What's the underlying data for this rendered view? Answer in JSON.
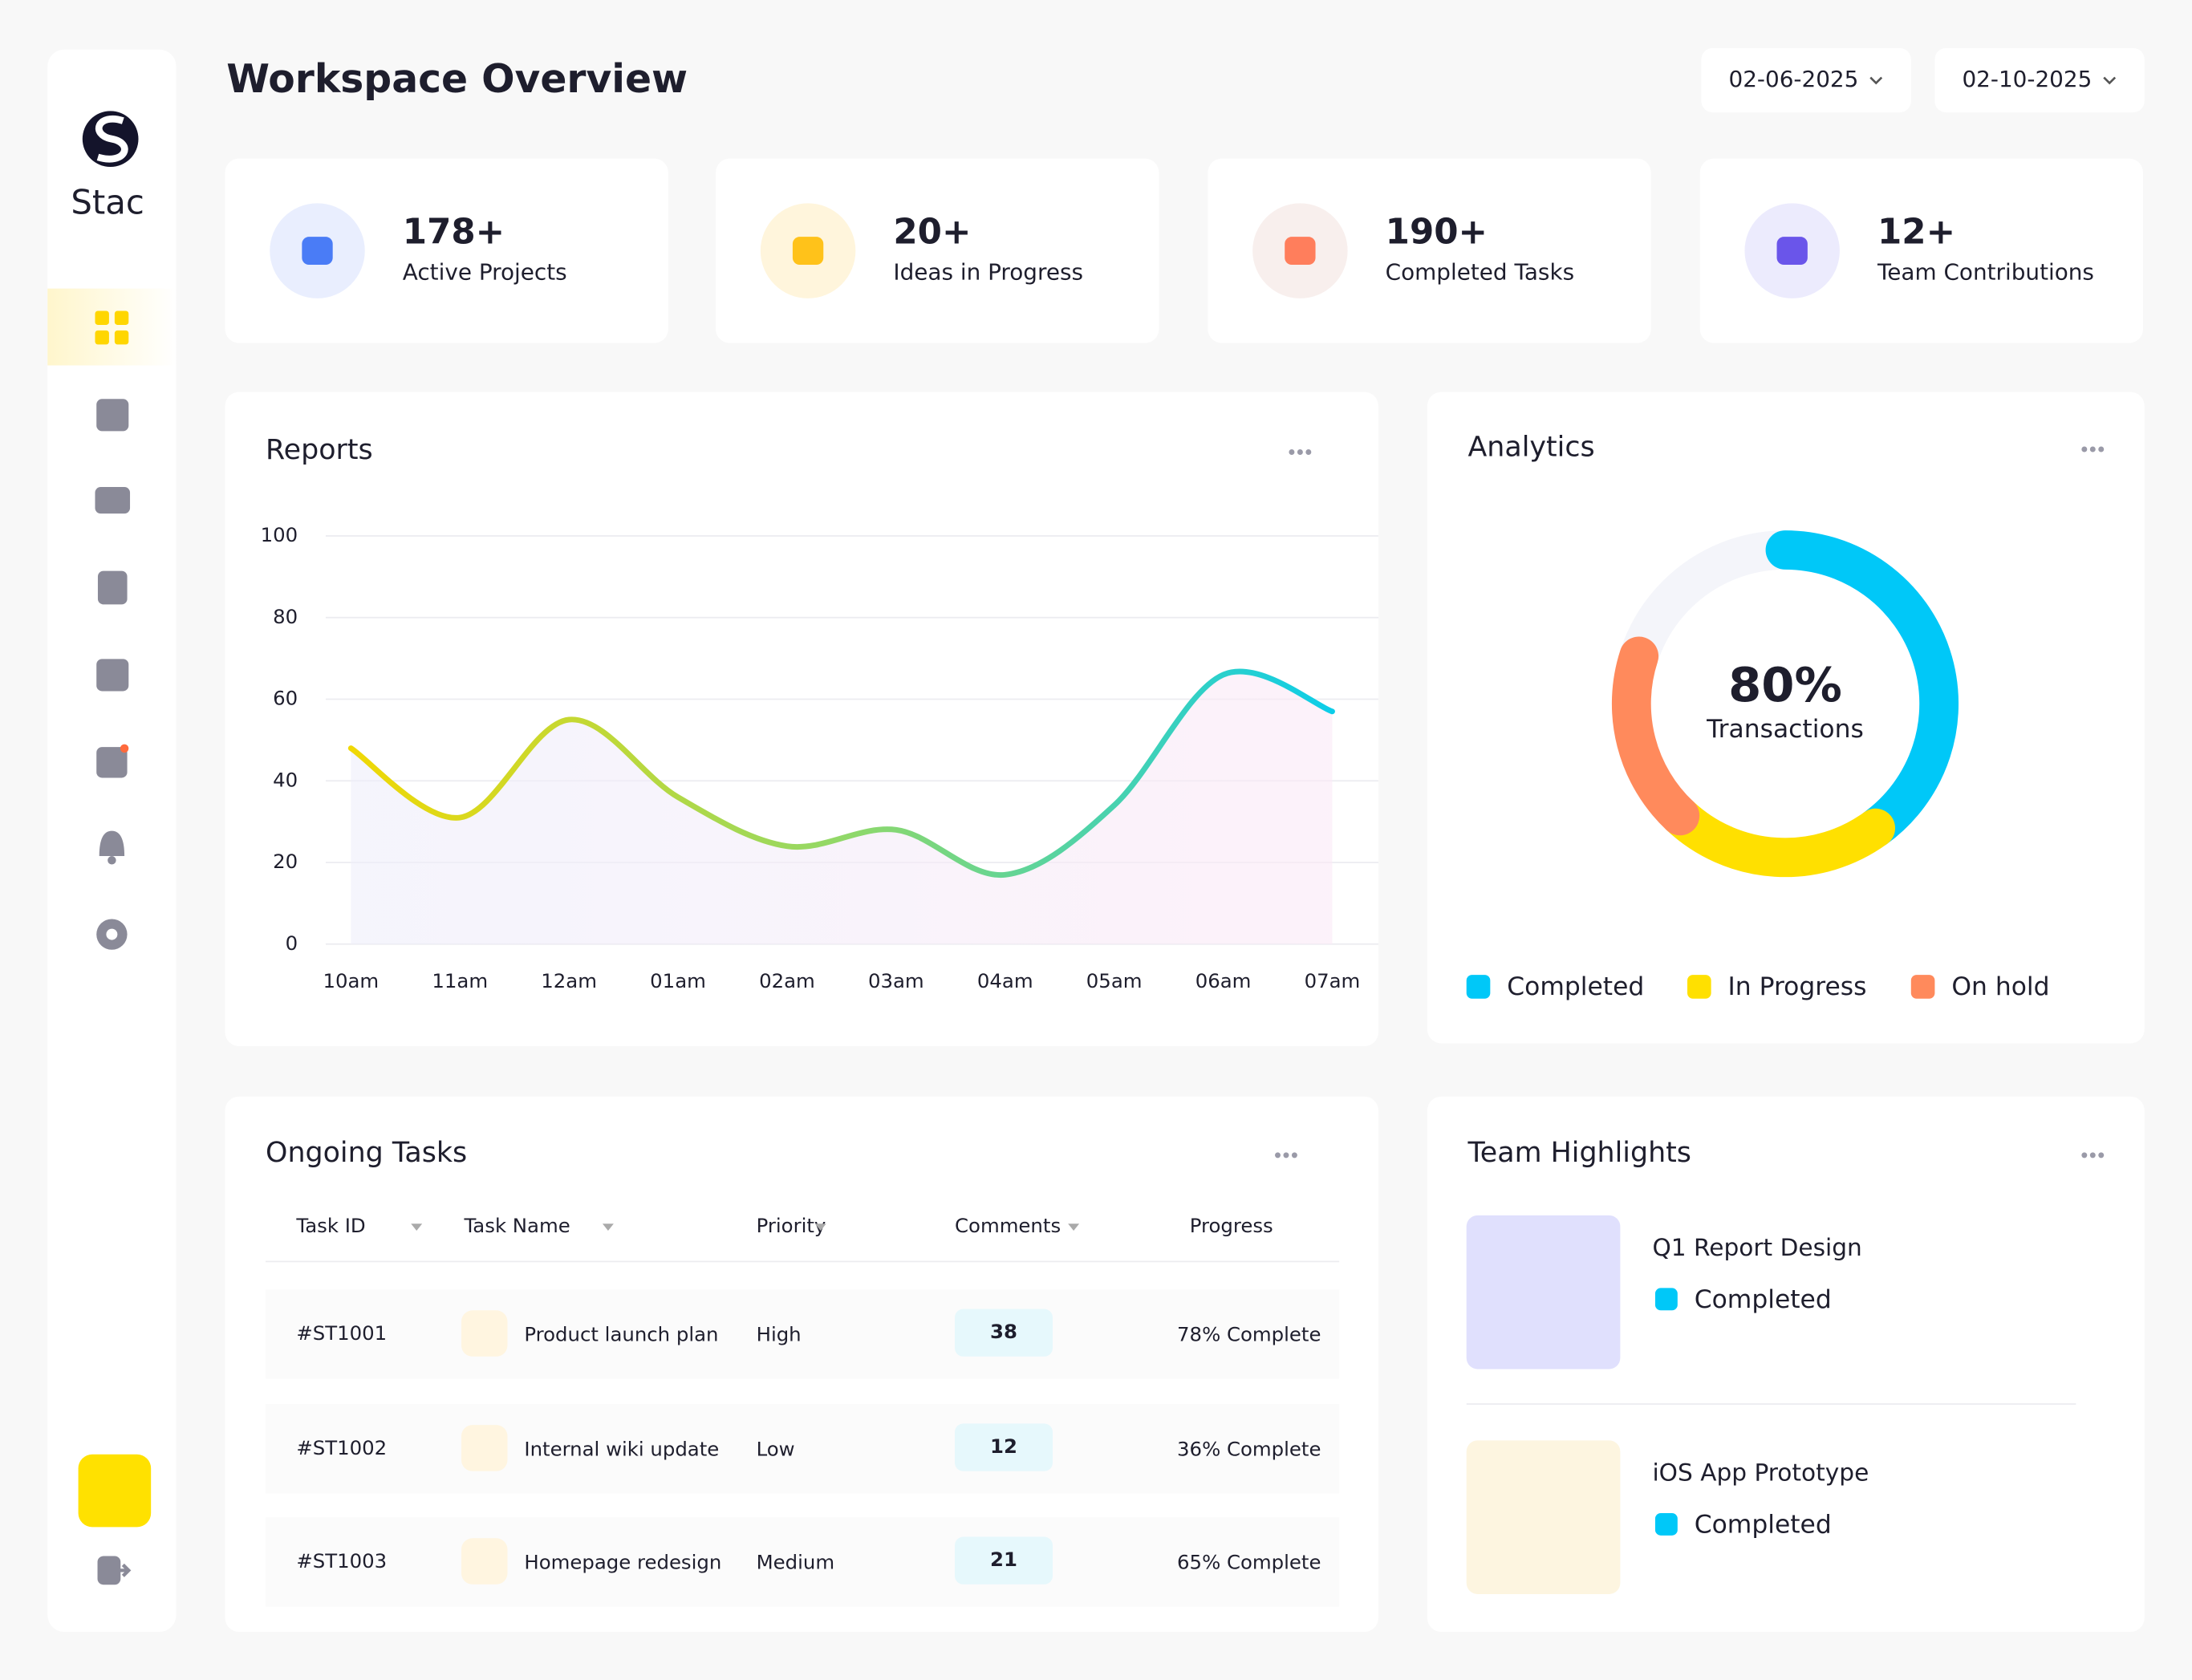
{
  "sidebar": {
    "brand": "Stac"
  },
  "header": {
    "title": "Workspace Overview",
    "dates": [
      "02-06-2025",
      "02-10-2025"
    ]
  },
  "stats": [
    {
      "value": "178+",
      "label": "Active Projects"
    },
    {
      "value": "20+",
      "label": "Ideas in Progress"
    },
    {
      "value": "190+",
      "label": "Completed Tasks"
    },
    {
      "value": "12+",
      "label": "Team Contributions"
    }
  ],
  "chart_data": [
    {
      "type": "line",
      "title": "Reports",
      "categories": [
        "10am",
        "11am",
        "12am",
        "01am",
        "02am",
        "03am",
        "04am",
        "05am",
        "06am",
        "07am"
      ],
      "values": [
        48,
        31,
        55,
        36,
        24,
        28,
        17,
        34,
        66,
        57
      ],
      "colors": [
        "#f5d800",
        "#8fd86a",
        "#00ccf5"
      ],
      "ylim": [
        0,
        100
      ],
      "yticks": [
        0,
        20,
        40,
        60,
        80,
        100
      ],
      "grid": true
    },
    {
      "type": "donut",
      "title": "Analytics",
      "center_label": "80%",
      "center_caption": "Transactions",
      "categories": [
        "Completed",
        "In Progress",
        "On hold"
      ],
      "values": [
        40,
        22,
        18
      ],
      "colors": [
        "#00c8f8",
        "#ffe000",
        "#ff8a5c"
      ],
      "ylim": [
        0,
        100
      ]
    }
  ],
  "tasks": {
    "title": "Ongoing Tasks",
    "columns": [
      "Task ID",
      "Task Name",
      "Priority",
      "Comments",
      "Progress"
    ],
    "rows": [
      [
        "#ST1001",
        "Product launch plan",
        "High",
        38,
        "78% Complete"
      ],
      [
        "#ST1002",
        "Internal wiki update",
        "Low",
        12,
        "36% Complete"
      ],
      [
        "#ST1003",
        "Homepage redesign",
        "Medium",
        21,
        "65% Complete"
      ]
    ]
  },
  "team": {
    "title": "Team Highlights",
    "items": [
      {
        "title": "Q1 Report Design",
        "status": "Completed"
      },
      {
        "title": "iOS App Prototype",
        "status": "Completed"
      }
    ]
  }
}
